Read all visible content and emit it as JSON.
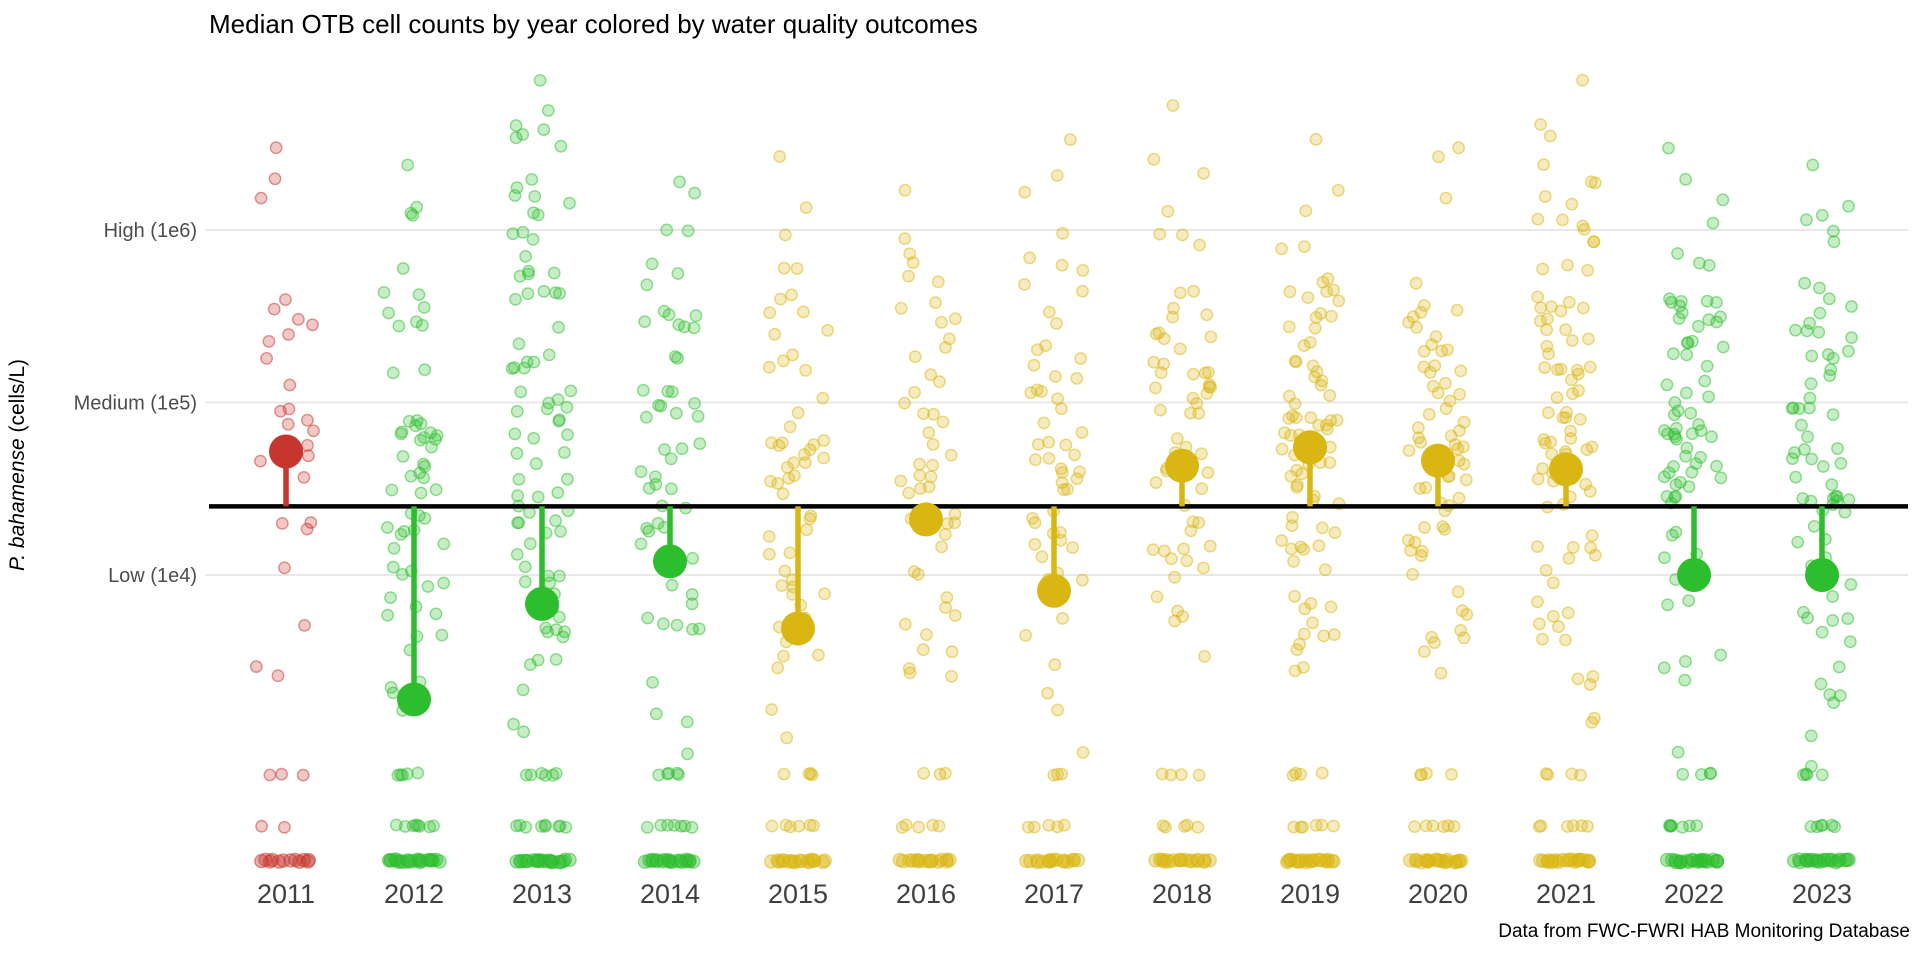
{
  "page": {
    "title": "Median OTB cell counts by year colored by water quality outcomes",
    "caption": "Data from FWC-FWRI HAB Monitoring Database"
  },
  "chart_data": {
    "type": "scatter",
    "subtype": "jittered strip plot with median lollipops vs. threshold line",
    "title": "Median OTB cell counts by year colored by water quality outcomes",
    "caption": "Data from FWC-FWRI HAB Monitoring Database",
    "ylabel_species": "P. bahamense",
    "ylabel_units": " (cells/L)",
    "y_axis": {
      "scale": "log10",
      "grid": true,
      "ticks": [
        {
          "label": "High (1e6)",
          "value": 1000000
        },
        {
          "label": "Medium (1e5)",
          "value": 100000
        },
        {
          "label": "Low (1e4)",
          "value": 10000
        }
      ]
    },
    "x_categories": [
      "2011",
      "2012",
      "2013",
      "2014",
      "2015",
      "2016",
      "2017",
      "2018",
      "2019",
      "2020",
      "2021",
      "2022",
      "2023"
    ],
    "reference_line": {
      "approx_cells_per_L": 25000
    },
    "detection_row_values": [
      700,
      350,
      220
    ],
    "colors": {
      "red": "#C6352E",
      "green": "#2DBE2D",
      "yellow": "#D9B611",
      "grid": "#E8E8E8",
      "threshold": "#000000",
      "axis_text": "#4D4D4D",
      "x_tick_text": "#404040",
      "title_text": "#000000"
    },
    "years": [
      {
        "year": "2011",
        "color_group": "red",
        "median_cells_per_L": 52000,
        "points": {
          "n_main": 30,
          "log10_min": 2.9,
          "log10_max": 6.55,
          "row_counts": [
            3,
            2,
            12
          ]
        }
      },
      {
        "year": "2012",
        "color_group": "green",
        "median_cells_per_L": 1900,
        "points": {
          "n_main": 60,
          "log10_min": 2.8,
          "log10_max": 6.45,
          "row_counts": [
            5,
            8,
            22
          ]
        }
      },
      {
        "year": "2013",
        "color_group": "green",
        "median_cells_per_L": 6800,
        "points": {
          "n_main": 85,
          "log10_min": 2.8,
          "log10_max": 6.95,
          "row_counts": [
            6,
            9,
            22
          ]
        }
      },
      {
        "year": "2014",
        "color_group": "green",
        "median_cells_per_L": 12000,
        "points": {
          "n_main": 55,
          "log10_min": 2.8,
          "log10_max": 6.35,
          "row_counts": [
            5,
            7,
            20
          ]
        }
      },
      {
        "year": "2015",
        "color_group": "yellow",
        "median_cells_per_L": 4900,
        "points": {
          "n_main": 55,
          "log10_min": 2.8,
          "log10_max": 6.5,
          "row_counts": [
            4,
            6,
            18
          ]
        }
      },
      {
        "year": "2016",
        "color_group": "yellow",
        "median_cells_per_L": 21000,
        "points": {
          "n_main": 50,
          "log10_min": 2.8,
          "log10_max": 6.3,
          "row_counts": [
            3,
            5,
            16
          ]
        }
      },
      {
        "year": "2017",
        "color_group": "yellow",
        "median_cells_per_L": 8100,
        "points": {
          "n_main": 55,
          "log10_min": 2.8,
          "log10_max": 6.6,
          "row_counts": [
            3,
            5,
            16
          ]
        }
      },
      {
        "year": "2018",
        "color_group": "yellow",
        "median_cells_per_L": 43000,
        "points": {
          "n_main": 60,
          "log10_min": 2.9,
          "log10_max": 6.8,
          "row_counts": [
            4,
            5,
            18
          ]
        }
      },
      {
        "year": "2019",
        "color_group": "yellow",
        "median_cells_per_L": 55000,
        "points": {
          "n_main": 80,
          "log10_min": 2.9,
          "log10_max": 6.6,
          "row_counts": [
            4,
            6,
            20
          ]
        }
      },
      {
        "year": "2020",
        "color_group": "yellow",
        "median_cells_per_L": 46000,
        "points": {
          "n_main": 70,
          "log10_min": 2.9,
          "log10_max": 6.55,
          "row_counts": [
            4,
            6,
            20
          ]
        }
      },
      {
        "year": "2021",
        "color_group": "yellow",
        "median_cells_per_L": 41000,
        "points": {
          "n_main": 85,
          "log10_min": 2.9,
          "log10_max": 6.95,
          "row_counts": [
            4,
            6,
            20
          ]
        }
      },
      {
        "year": "2022",
        "color_group": "green",
        "median_cells_per_L": 10000,
        "points": {
          "n_main": 75,
          "log10_min": 2.8,
          "log10_max": 6.55,
          "row_counts": [
            4,
            7,
            22
          ]
        }
      },
      {
        "year": "2023",
        "color_group": "green",
        "median_cells_per_L": 10000,
        "points": {
          "n_main": 70,
          "log10_min": 2.8,
          "log10_max": 6.45,
          "row_counts": [
            4,
            6,
            22
          ]
        }
      }
    ]
  }
}
